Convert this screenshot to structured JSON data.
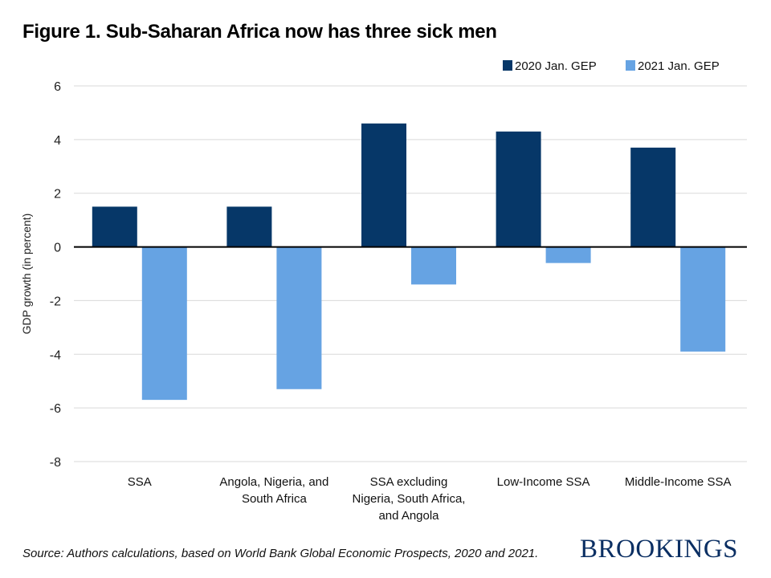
{
  "title": "Figure 1. Sub-Saharan Africa now has three sick men",
  "source": "Source: Authors calculations, based on World Bank Global Economic Prospects, 2020 and 2021.",
  "logo": "BROOKINGS",
  "chart_data": {
    "type": "bar",
    "title": "Figure 1. Sub-Saharan Africa now has three sick men",
    "xlabel": "",
    "ylabel": "GDP growth (in percent)",
    "ylim": [
      -8,
      6
    ],
    "yticks": [
      6,
      4,
      2,
      0,
      -2,
      -4,
      -6,
      -8
    ],
    "grid": true,
    "legend_position": "top-right",
    "categories": [
      [
        "SSA"
      ],
      [
        "Angola, Nigeria, and",
        "South Africa"
      ],
      [
        "SSA excluding",
        "Nigeria, South Africa,",
        "and Angola"
      ],
      [
        "Low-Income SSA"
      ],
      [
        "Middle-Income SSA"
      ]
    ],
    "series": [
      {
        "name": "2020 Jan. GEP",
        "color": "#063768",
        "values": [
          1.5,
          1.5,
          4.6,
          4.3,
          3.7
        ]
      },
      {
        "name": "2021 Jan. GEP",
        "color": "#66a3e3",
        "values": [
          -5.7,
          -5.3,
          -1.4,
          -0.6,
          -3.9
        ]
      }
    ]
  }
}
